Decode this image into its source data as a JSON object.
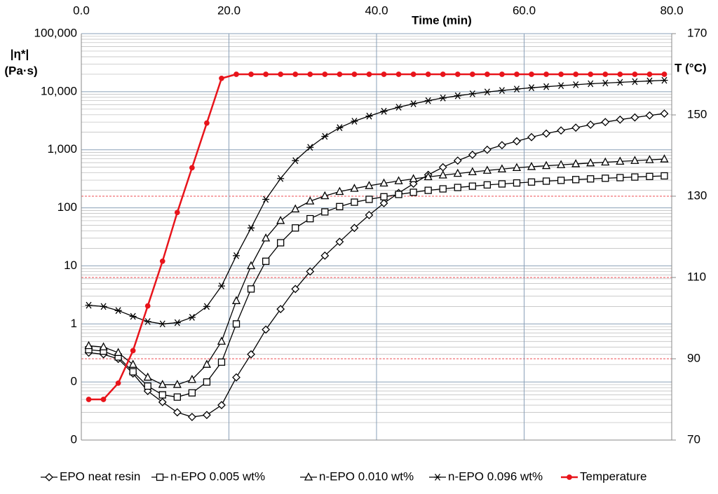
{
  "chart_data": {
    "type": "line",
    "x_label": "Time (min)",
    "y_label": [
      "|η*|",
      "(Pa·s)"
    ],
    "y2_label": "T (°C)",
    "log_y": true,
    "grid": true,
    "y2grid": true,
    "legend": "bottom",
    "xlim": [
      0,
      80
    ],
    "xticks": [
      {
        "value": 0,
        "label": "0.0"
      },
      {
        "value": 20,
        "label": "20.0"
      },
      {
        "value": 40,
        "label": "40.0"
      },
      {
        "value": 60,
        "label": "60.0"
      },
      {
        "value": 80,
        "label": "80.0"
      }
    ],
    "ylim": [
      0.01,
      100000
    ],
    "yticks": [
      {
        "value": 0.01,
        "label": "0"
      },
      {
        "value": 0.1,
        "label": "0"
      },
      1,
      10,
      100,
      {
        "value": 1000,
        "label": "1,000"
      },
      {
        "value": 10000,
        "label": "10,000"
      },
      {
        "value": 100000,
        "label": "100,000"
      }
    ],
    "y2lim": [
      70,
      170
    ],
    "y2ticks": [
      70,
      90,
      110,
      130,
      150,
      170
    ],
    "x": [
      1,
      3,
      5,
      7,
      9,
      11,
      13,
      15,
      17,
      19,
      21,
      23,
      25,
      27,
      29,
      31,
      33,
      35,
      37,
      39,
      41,
      43,
      45,
      47,
      49,
      51,
      53,
      55,
      57,
      59,
      61,
      63,
      65,
      67,
      69,
      71,
      73,
      75,
      77,
      79
    ],
    "series": [
      {
        "name": "EPO neat resin",
        "color": "#000000",
        "marker": "diamond",
        "values": [
          0.32,
          0.3,
          0.25,
          0.14,
          0.07,
          0.045,
          0.03,
          0.025,
          0.027,
          0.04,
          0.12,
          0.3,
          0.8,
          1.8,
          4,
          8,
          15,
          26,
          45,
          75,
          120,
          180,
          260,
          370,
          500,
          650,
          820,
          1000,
          1200,
          1400,
          1650,
          1900,
          2150,
          2400,
          2700,
          3000,
          3300,
          3600,
          3900,
          4200
        ]
      },
      {
        "name": "n-EPO 0.005 wt%",
        "color": "#000000",
        "marker": "square",
        "values": [
          0.36,
          0.34,
          0.27,
          0.15,
          0.085,
          0.06,
          0.055,
          0.065,
          0.1,
          0.22,
          1.0,
          4,
          12,
          25,
          45,
          65,
          85,
          105,
          125,
          140,
          155,
          170,
          185,
          200,
          212,
          224,
          236,
          248,
          258,
          268,
          278,
          288,
          297,
          306,
          315,
          323,
          331,
          339,
          347,
          355
        ]
      },
      {
        "name": "n-EPO 0.010 wt%",
        "color": "#000000",
        "marker": "triangle",
        "values": [
          0.42,
          0.4,
          0.32,
          0.2,
          0.12,
          0.09,
          0.09,
          0.11,
          0.2,
          0.5,
          2.5,
          10,
          30,
          60,
          95,
          130,
          160,
          190,
          215,
          240,
          265,
          290,
          315,
          340,
          365,
          390,
          415,
          440,
          465,
          490,
          510,
          530,
          550,
          570,
          590,
          610,
          630,
          650,
          670,
          690
        ]
      },
      {
        "name": "n-EPO 0.096 wt%",
        "color": "#000000",
        "marker": "star",
        "values": [
          2.1,
          2.0,
          1.7,
          1.35,
          1.1,
          1.0,
          1.05,
          1.3,
          2.0,
          4.5,
          15,
          45,
          140,
          320,
          650,
          1100,
          1700,
          2400,
          3100,
          3800,
          4600,
          5400,
          6200,
          7000,
          7800,
          8500,
          9200,
          9900,
          10500,
          11100,
          11700,
          12200,
          12700,
          13200,
          13700,
          14100,
          14500,
          14900,
          15300,
          15700
        ]
      },
      {
        "name": "Temperature",
        "color": "#e8141b",
        "marker": "circle",
        "axis": "y2",
        "values": [
          80,
          80,
          84,
          92,
          103,
          114,
          126,
          137,
          148,
          159,
          160,
          160,
          160,
          160,
          160,
          160,
          160,
          160,
          160,
          160,
          160,
          160,
          160,
          160,
          160,
          160,
          160,
          160,
          160,
          160,
          160,
          160,
          160,
          160,
          160,
          160,
          160,
          160,
          160,
          160
        ]
      }
    ]
  }
}
